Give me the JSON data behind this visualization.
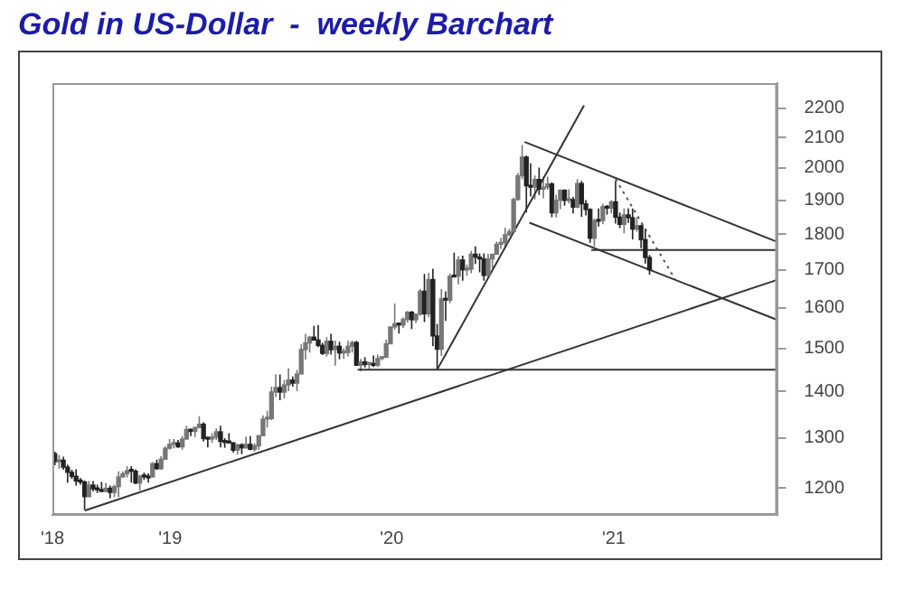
{
  "chart_data": {
    "type": "candlestick",
    "title": "Gold in US-Dollar  -  weekly Barchart",
    "colors": [
      "#222222",
      "#777777",
      "#222222",
      "#222222",
      "#222222",
      "#222222",
      "#222222",
      "#222222",
      "#777777",
      "#222222",
      "#222222",
      "#222222",
      "#777777",
      "#222222",
      "#777777",
      "#777777",
      "#777777",
      "#777777",
      "#222222",
      "#222222",
      "#777777",
      "#222222",
      "#222222",
      "#777777",
      "#222222",
      "#777777",
      "#777777",
      "#777777",
      "#777777",
      "#222222",
      "#777777",
      "#777777",
      "#222222",
      "#777777",
      "#777777",
      "#222222",
      "#222222",
      "#777777",
      "#777777",
      "#222222",
      "#222222",
      "#222222",
      "#222222",
      "#777777",
      "#222222",
      "#777777",
      "#222222",
      "#777777",
      "#777777",
      "#777777",
      "#777777",
      "#777777",
      "#777777",
      "#222222",
      "#777777",
      "#777777",
      "#222222",
      "#777777",
      "#777777",
      "#777777",
      "#777777",
      "#222222",
      "#222222",
      "#222222",
      "#777777",
      "#222222",
      "#777777",
      "#222222",
      "#777777",
      "#777777",
      "#777777",
      "#222222",
      "#777777",
      "#222222",
      "#777777",
      "#222222",
      "#777777",
      "#777777",
      "#777777",
      "#777777",
      "#777777",
      "#222222",
      "#777777",
      "#777777",
      "#222222",
      "#777777",
      "#777777",
      "#222222",
      "#777777",
      "#222222",
      "#222222",
      "#777777",
      "#222222",
      "#777777",
      "#222222",
      "#777777",
      "#222222",
      "#777777",
      "#777777",
      "#222222",
      "#222222",
      "#222222",
      "#777777",
      "#777777",
      "#777777",
      "#777777",
      "#777777",
      "#777777",
      "#777777",
      "#777777",
      "#777777",
      "#222222",
      "#222222",
      "#777777",
      "#222222",
      "#777777",
      "#777777",
      "#222222",
      "#777777",
      "#777777",
      "#222222",
      "#777777",
      "#222222",
      "#777777",
      "#222222",
      "#222222",
      "#222222",
      "#777777",
      "#222222",
      "#777777",
      "#222222",
      "#777777",
      "#222222",
      "#222222",
      "#777777",
      "#222222",
      "#222222",
      "#777777",
      "#222222",
      "#222222",
      "#222222"
    ],
    "x": [
      "2018-06-25",
      "2018-07-02",
      "2018-07-09",
      "2018-07-16",
      "2018-07-23",
      "2018-07-30",
      "2018-08-06",
      "2018-08-13",
      "2018-08-20",
      "2018-08-27",
      "2018-09-03",
      "2018-09-10",
      "2018-09-17",
      "2018-09-24",
      "2018-10-01",
      "2018-10-08",
      "2018-10-15",
      "2018-10-22",
      "2018-10-29",
      "2018-11-05",
      "2018-11-12",
      "2018-11-19",
      "2018-11-26",
      "2018-12-03",
      "2018-12-10",
      "2018-12-17",
      "2018-12-24",
      "2018-12-31",
      "2019-01-07",
      "2019-01-14",
      "2019-01-21",
      "2019-01-28",
      "2019-02-04",
      "2019-02-11",
      "2019-02-18",
      "2019-02-25",
      "2019-03-04",
      "2019-03-11",
      "2019-03-18",
      "2019-03-25",
      "2019-04-01",
      "2019-04-08",
      "2019-04-15",
      "2019-04-22",
      "2019-04-29",
      "2019-05-06",
      "2019-05-13",
      "2019-05-20",
      "2019-05-27",
      "2019-06-03",
      "2019-06-10",
      "2019-06-17",
      "2019-06-24",
      "2019-07-01",
      "2019-07-08",
      "2019-07-15",
      "2019-07-22",
      "2019-07-29",
      "2019-08-05",
      "2019-08-12",
      "2019-08-19",
      "2019-08-26",
      "2019-09-02",
      "2019-09-09",
      "2019-09-16",
      "2019-09-23",
      "2019-09-30",
      "2019-10-07",
      "2019-10-14",
      "2019-10-21",
      "2019-10-28",
      "2019-11-04",
      "2019-11-11",
      "2019-11-18",
      "2019-11-25",
      "2019-12-02",
      "2019-12-09",
      "2019-12-16",
      "2019-12-23",
      "2019-12-30",
      "2020-01-06",
      "2020-01-13",
      "2020-01-20",
      "2020-01-27",
      "2020-02-03",
      "2020-02-10",
      "2020-02-17",
      "2020-02-24",
      "2020-03-02",
      "2020-03-09",
      "2020-03-16",
      "2020-03-23",
      "2020-03-30",
      "2020-04-06",
      "2020-04-13",
      "2020-04-20",
      "2020-04-27",
      "2020-05-04",
      "2020-05-11",
      "2020-05-18",
      "2020-05-25",
      "2020-06-01",
      "2020-06-08",
      "2020-06-15",
      "2020-06-22",
      "2020-06-29",
      "2020-07-06",
      "2020-07-13",
      "2020-07-20",
      "2020-07-27",
      "2020-08-03",
      "2020-08-10",
      "2020-08-17",
      "2020-08-24",
      "2020-08-31",
      "2020-09-07",
      "2020-09-14",
      "2020-09-21",
      "2020-09-28",
      "2020-10-05",
      "2020-10-12",
      "2020-10-19",
      "2020-10-26",
      "2020-11-02",
      "2020-11-09",
      "2020-11-16",
      "2020-11-23",
      "2020-11-30",
      "2020-12-07",
      "2020-12-14",
      "2020-12-21",
      "2020-12-28",
      "2021-01-04",
      "2021-01-11",
      "2021-01-18",
      "2021-01-25",
      "2021-02-01",
      "2021-02-08",
      "2021-02-15",
      "2021-02-22",
      "2021-03-01"
    ],
    "ohlc": [
      [
        1268,
        1272,
        1245,
        1252
      ],
      [
        1252,
        1265,
        1238,
        1255
      ],
      [
        1255,
        1262,
        1236,
        1241
      ],
      [
        1241,
        1246,
        1211,
        1231
      ],
      [
        1231,
        1236,
        1218,
        1223
      ],
      [
        1223,
        1237,
        1205,
        1214
      ],
      [
        1214,
        1220,
        1207,
        1212
      ],
      [
        1212,
        1215,
        1160,
        1184
      ],
      [
        1184,
        1214,
        1183,
        1206
      ],
      [
        1206,
        1214,
        1194,
        1199
      ],
      [
        1199,
        1207,
        1191,
        1197
      ],
      [
        1197,
        1212,
        1192,
        1194
      ],
      [
        1194,
        1210,
        1192,
        1200
      ],
      [
        1200,
        1205,
        1181,
        1192
      ],
      [
        1192,
        1207,
        1183,
        1203
      ],
      [
        1203,
        1233,
        1183,
        1222
      ],
      [
        1222,
        1233,
        1220,
        1228
      ],
      [
        1228,
        1243,
        1221,
        1234
      ],
      [
        1234,
        1243,
        1211,
        1233
      ],
      [
        1233,
        1237,
        1208,
        1210
      ],
      [
        1210,
        1226,
        1196,
        1223
      ],
      [
        1223,
        1230,
        1216,
        1222
      ],
      [
        1222,
        1229,
        1211,
        1220
      ],
      [
        1222,
        1251,
        1221,
        1248
      ],
      [
        1248,
        1256,
        1236,
        1238
      ],
      [
        1238,
        1263,
        1236,
        1257
      ],
      [
        1257,
        1283,
        1256,
        1279
      ],
      [
        1279,
        1298,
        1276,
        1287
      ],
      [
        1287,
        1298,
        1279,
        1290
      ],
      [
        1290,
        1296,
        1280,
        1282
      ],
      [
        1282,
        1304,
        1276,
        1298
      ],
      [
        1298,
        1326,
        1297,
        1318
      ],
      [
        1318,
        1320,
        1304,
        1314
      ],
      [
        1314,
        1324,
        1302,
        1322
      ],
      [
        1322,
        1346,
        1320,
        1329
      ],
      [
        1329,
        1333,
        1293,
        1299
      ],
      [
        1299,
        1301,
        1281,
        1298
      ],
      [
        1298,
        1310,
        1290,
        1302
      ],
      [
        1302,
        1320,
        1296,
        1313
      ],
      [
        1313,
        1326,
        1281,
        1293
      ],
      [
        1293,
        1300,
        1280,
        1291
      ],
      [
        1291,
        1310,
        1289,
        1290
      ],
      [
        1290,
        1292,
        1270,
        1275
      ],
      [
        1275,
        1288,
        1266,
        1286
      ],
      [
        1286,
        1289,
        1267,
        1280
      ],
      [
        1280,
        1303,
        1278,
        1287
      ],
      [
        1287,
        1304,
        1275,
        1277
      ],
      [
        1277,
        1289,
        1272,
        1284
      ],
      [
        1284,
        1306,
        1276,
        1305
      ],
      [
        1305,
        1348,
        1305,
        1340
      ],
      [
        1340,
        1358,
        1322,
        1341
      ],
      [
        1341,
        1411,
        1338,
        1399
      ],
      [
        1399,
        1439,
        1388,
        1409
      ],
      [
        1409,
        1439,
        1381,
        1399
      ],
      [
        1399,
        1426,
        1385,
        1415
      ],
      [
        1415,
        1453,
        1401,
        1426
      ],
      [
        1426,
        1434,
        1411,
        1419
      ],
      [
        1419,
        1449,
        1401,
        1440
      ],
      [
        1440,
        1510,
        1440,
        1497
      ],
      [
        1497,
        1535,
        1473,
        1513
      ],
      [
        1513,
        1530,
        1490,
        1527
      ],
      [
        1527,
        1555,
        1519,
        1520
      ],
      [
        1520,
        1557,
        1503,
        1507
      ],
      [
        1507,
        1513,
        1484,
        1488
      ],
      [
        1488,
        1527,
        1481,
        1517
      ],
      [
        1517,
        1535,
        1485,
        1497
      ],
      [
        1497,
        1519,
        1459,
        1505
      ],
      [
        1505,
        1516,
        1474,
        1489
      ],
      [
        1489,
        1500,
        1475,
        1490
      ],
      [
        1490,
        1518,
        1481,
        1505
      ],
      [
        1505,
        1519,
        1490,
        1514
      ],
      [
        1514,
        1518,
        1460,
        1460
      ],
      [
        1460,
        1475,
        1446,
        1468
      ],
      [
        1468,
        1479,
        1455,
        1462
      ],
      [
        1462,
        1468,
        1452,
        1464
      ],
      [
        1464,
        1483,
        1456,
        1460
      ],
      [
        1460,
        1485,
        1456,
        1476
      ],
      [
        1476,
        1481,
        1472,
        1479
      ],
      [
        1479,
        1521,
        1477,
        1511
      ],
      [
        1511,
        1553,
        1510,
        1552
      ],
      [
        1552,
        1611,
        1545,
        1560
      ],
      [
        1560,
        1563,
        1536,
        1557
      ],
      [
        1557,
        1576,
        1549,
        1571
      ],
      [
        1571,
        1592,
        1563,
        1589
      ],
      [
        1589,
        1592,
        1547,
        1570
      ],
      [
        1570,
        1585,
        1562,
        1584
      ],
      [
        1584,
        1649,
        1580,
        1643
      ],
      [
        1643,
        1689,
        1564,
        1585
      ],
      [
        1585,
        1692,
        1576,
        1674
      ],
      [
        1674,
        1703,
        1505,
        1530
      ],
      [
        1530,
        1560,
        1451,
        1498
      ],
      [
        1498,
        1649,
        1482,
        1623
      ],
      [
        1623,
        1643,
        1567,
        1620
      ],
      [
        1620,
        1690,
        1612,
        1683
      ],
      [
        1683,
        1747,
        1680,
        1681
      ],
      [
        1683,
        1738,
        1661,
        1727
      ],
      [
        1727,
        1739,
        1671,
        1700
      ],
      [
        1700,
        1715,
        1684,
        1702
      ],
      [
        1702,
        1752,
        1691,
        1743
      ],
      [
        1743,
        1765,
        1716,
        1735
      ],
      [
        1735,
        1745,
        1693,
        1730
      ],
      [
        1730,
        1745,
        1671,
        1685
      ],
      [
        1685,
        1744,
        1682,
        1730
      ],
      [
        1730,
        1744,
        1704,
        1743
      ],
      [
        1743,
        1779,
        1742,
        1771
      ],
      [
        1771,
        1789,
        1757,
        1775
      ],
      [
        1775,
        1818,
        1763,
        1798
      ],
      [
        1798,
        1815,
        1794,
        1807
      ],
      [
        1807,
        1908,
        1805,
        1902
      ],
      [
        1902,
        1984,
        1898,
        1975
      ],
      [
        1975,
        2075,
        1965,
        2035
      ],
      [
        2035,
        2040,
        1863,
        1944
      ],
      [
        1944,
        2015,
        1911,
        1940
      ],
      [
        1940,
        1976,
        1902,
        1964
      ],
      [
        1964,
        2001,
        1916,
        1934
      ],
      [
        1934,
        1973,
        1906,
        1940
      ],
      [
        1940,
        1973,
        1932,
        1950
      ],
      [
        1950,
        1955,
        1849,
        1862
      ],
      [
        1862,
        1917,
        1848,
        1900
      ],
      [
        1900,
        1933,
        1873,
        1930
      ],
      [
        1930,
        1933,
        1883,
        1899
      ],
      [
        1899,
        1933,
        1890,
        1902
      ],
      [
        1902,
        1910,
        1860,
        1879
      ],
      [
        1879,
        1965,
        1876,
        1951
      ],
      [
        1951,
        1959,
        1850,
        1889
      ],
      [
        1889,
        1900,
        1854,
        1872
      ],
      [
        1872,
        1876,
        1775,
        1788
      ],
      [
        1788,
        1845,
        1764,
        1839
      ],
      [
        1839,
        1875,
        1822,
        1837
      ],
      [
        1839,
        1889,
        1828,
        1881
      ],
      [
        1881,
        1885,
        1857,
        1876
      ],
      [
        1876,
        1900,
        1860,
        1895
      ],
      [
        1895,
        1959,
        1830,
        1849
      ],
      [
        1849,
        1863,
        1817,
        1828
      ],
      [
        1828,
        1875,
        1802,
        1856
      ],
      [
        1856,
        1875,
        1832,
        1848
      ],
      [
        1848,
        1875,
        1785,
        1814
      ],
      [
        1814,
        1849,
        1807,
        1824
      ],
      [
        1824,
        1827,
        1760,
        1784
      ],
      [
        1784,
        1815,
        1717,
        1734
      ],
      [
        1734,
        1741,
        1687,
        1700
      ]
    ],
    "series": [
      {
        "type": "line",
        "color": "#333333",
        "x": [
          "2018-08-13",
          "2021-09-27"
        ],
        "values": [
          1158,
          1673
        ]
      },
      {
        "type": "line",
        "color": "#333333",
        "x": [
          "2019-11-06",
          "2021-09-27"
        ],
        "values": [
          1450,
          1450
        ]
      },
      {
        "type": "line",
        "color": "#333333",
        "x": [
          "2020-03-16",
          "2020-11-13"
        ],
        "values": [
          1450,
          2210
        ]
      },
      {
        "type": "line",
        "color": "#333333",
        "x": [
          "2020-11-25",
          "2021-09-27"
        ],
        "values": [
          1755,
          1755
        ]
      },
      {
        "type": "line",
        "color": "#333333",
        "x": [
          "2020-08-07",
          "2021-09-27"
        ],
        "values": [
          2085,
          1778
        ]
      },
      {
        "type": "line",
        "color": "#333333",
        "x": [
          "2020-08-15",
          "2021-09-27"
        ],
        "values": [
          1833,
          1570
        ]
      },
      {
        "type": "line",
        "color": "#555555",
        "line_style": "dotted",
        "x": [
          "2021-01-04",
          "2021-04-12"
        ],
        "values": [
          1965,
          1675
        ]
      }
    ],
    "xlim": [
      "2018-06-21",
      "2021-09-27"
    ],
    "xticks": [
      {
        "value": "2018-06-21",
        "label": "'18"
      },
      {
        "value": "2019-01-01",
        "label": "'19"
      },
      {
        "value": "2020-01-01",
        "label": "'20"
      },
      {
        "value": "2021-01-01",
        "label": "'21"
      }
    ],
    "ylim": [
      1150,
      2290
    ],
    "yticks": [
      1200,
      1300,
      1400,
      1500,
      1600,
      1700,
      1800,
      1900,
      2000,
      2100,
      2200
    ],
    "log": "y",
    "grid": false,
    "legend": false
  }
}
